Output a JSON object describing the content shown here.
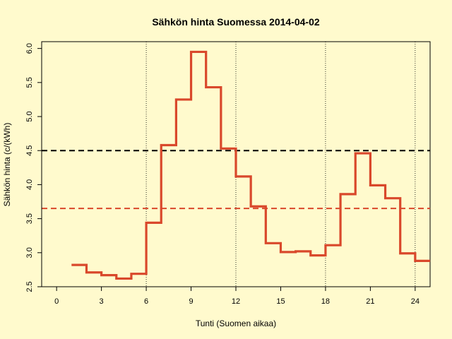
{
  "chart_data": {
    "type": "line",
    "title": "Sähkön hinta Suomessa 2014-04-02",
    "xlabel": "Tunti (Suomen aikaa)",
    "ylabel": "Sähkön hinta (c/(kWh)",
    "xlim": [
      -1,
      25
    ],
    "ylim": [
      2.5,
      6.1
    ],
    "x_ticks": [
      "0",
      "3",
      "6",
      "9",
      "12",
      "15",
      "18",
      "21",
      "24"
    ],
    "x_tick_values": [
      0,
      3,
      6,
      9,
      12,
      15,
      18,
      21,
      24
    ],
    "y_ticks": [
      "2.5",
      "3.0",
      "3.5",
      "4.0",
      "4.5",
      "5.0",
      "5.5",
      "6.0"
    ],
    "y_tick_values": [
      2.5,
      3.0,
      3.5,
      4.0,
      4.5,
      5.0,
      5.5,
      6.0
    ],
    "vertical_gridlines": [
      6,
      12,
      18,
      24
    ],
    "series": [
      {
        "style": "step",
        "color": "#D9482B",
        "x": [
          1,
          2,
          3,
          4,
          5,
          6,
          7,
          8,
          9,
          10,
          11,
          12,
          13,
          14,
          15,
          16,
          17,
          18,
          19,
          20,
          21,
          22,
          23,
          24
        ],
        "values": [
          2.82,
          2.71,
          2.67,
          2.62,
          2.69,
          3.44,
          4.58,
          5.25,
          5.95,
          5.43,
          4.53,
          4.12,
          3.68,
          3.14,
          3.01,
          3.02,
          2.96,
          3.11,
          3.86,
          4.46,
          3.99,
          3.8,
          2.99,
          2.88
        ]
      }
    ],
    "reference_lines": [
      {
        "value": 4.5,
        "color": "#000000",
        "style": "dashed"
      },
      {
        "value": 3.65,
        "color": "#D9482B",
        "style": "dashed"
      }
    ]
  }
}
